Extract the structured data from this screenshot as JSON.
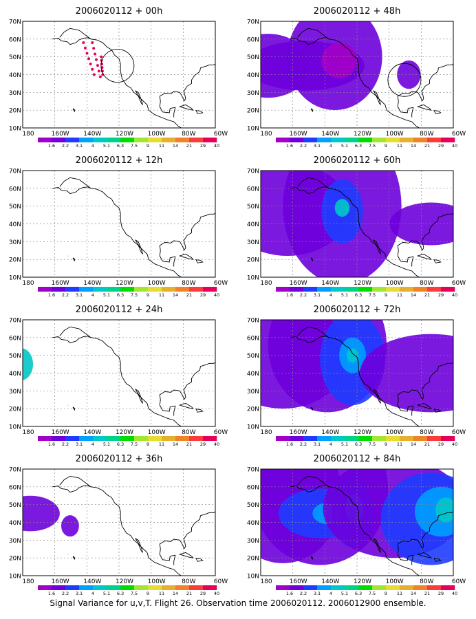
{
  "figure": {
    "caption": "Signal Variance for u,v,T. Flight 26. Observation time 2006020112. 2006012900 ensemble.",
    "colorbar": {
      "labels": [
        "1.6",
        "2.2",
        "3.1",
        "4",
        "5.1",
        "6.3",
        "7.5",
        "9",
        "11",
        "14",
        "21",
        "29",
        "40"
      ],
      "colors": [
        "#a000c8",
        "#6e00dc",
        "#1e3cff",
        "#00a0ff",
        "#00c8c8",
        "#00d28c",
        "#00dc00",
        "#a0e632",
        "#e6dc32",
        "#e6af2d",
        "#f08228",
        "#fa3c3c",
        "#e6005a"
      ]
    },
    "map_grid": {
      "lon_ticks": [
        "180",
        "160W",
        "140W",
        "120W",
        "100W",
        "80W",
        "60W"
      ],
      "lat_ticks": [
        "10N",
        "20N",
        "30N",
        "40N",
        "50N",
        "60N",
        "70N"
      ]
    },
    "panels": [
      {
        "title": "2006020112 + 00h",
        "features": "flight-track"
      },
      {
        "title": "2006020112 + 12h",
        "features": "none"
      },
      {
        "title": "2006020112 + 24h",
        "features": "small-west-blob"
      },
      {
        "title": "2006020112 + 36h",
        "features": "two-blobs"
      },
      {
        "title": "2006020112 + 48h",
        "features": "band-and-circle"
      },
      {
        "title": "2006020112 + 60h",
        "features": "spreading"
      },
      {
        "title": "2006020112 + 72h",
        "features": "large"
      },
      {
        "title": "2006020112 + 84h",
        "features": "largest"
      }
    ]
  }
}
